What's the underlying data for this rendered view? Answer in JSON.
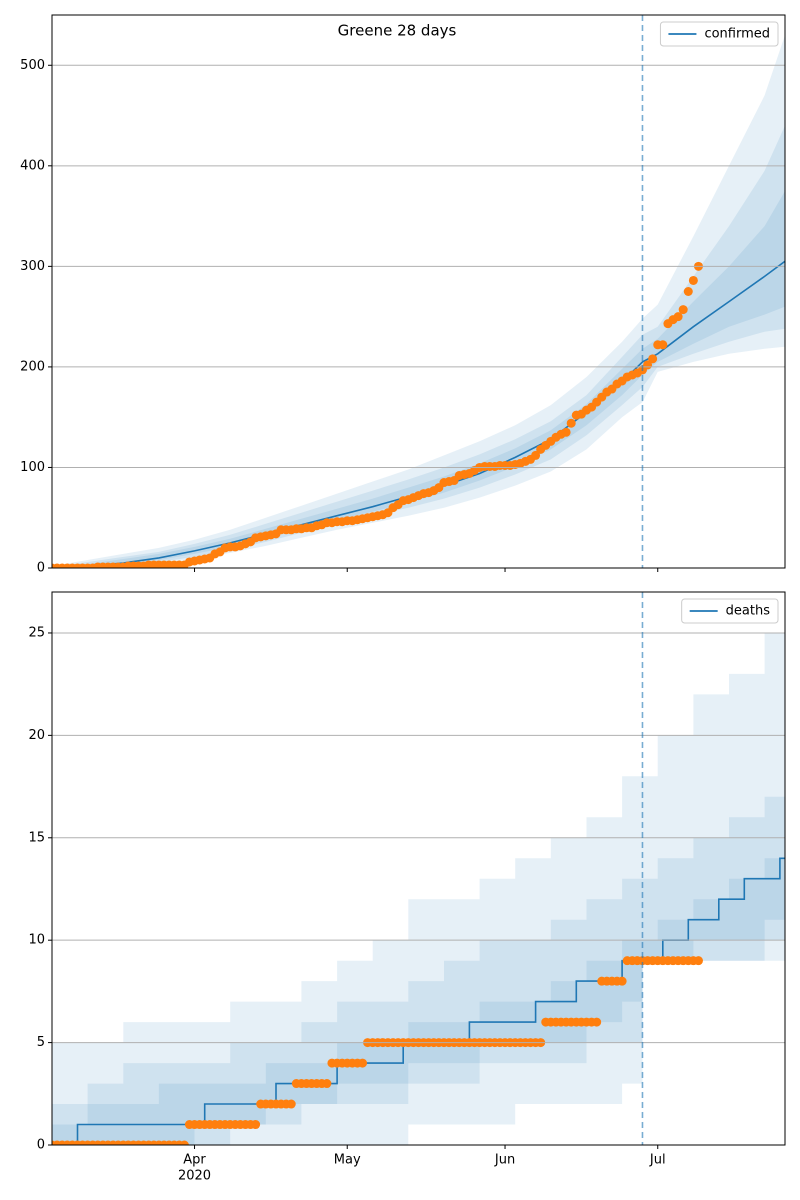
{
  "chart_data": [
    {
      "type": "line",
      "title": "Greene 28 days",
      "xlim": [
        0,
        144
      ],
      "xticks": [
        28,
        58,
        89,
        119
      ],
      "ylim": [
        0,
        550
      ],
      "yticks": [
        0,
        100,
        200,
        300,
        400,
        500
      ],
      "grid": true,
      "legend": "upper right",
      "vline": 116,
      "bands": {
        "color": "#1f77b4",
        "x": [
          0,
          7,
          14,
          21,
          28,
          35,
          42,
          49,
          56,
          63,
          70,
          77,
          84,
          91,
          98,
          105,
          112,
          116,
          119,
          126,
          133,
          140,
          144
        ],
        "lower": [
          [
            0,
            0,
            1,
            4,
            9,
            15,
            22,
            30,
            38,
            45,
            52,
            60,
            70,
            82,
            96,
            118,
            150,
            165,
            195,
            205,
            213,
            218,
            220
          ],
          [
            0,
            0,
            2,
            6,
            11,
            18,
            26,
            35,
            44,
            52,
            60,
            69,
            80,
            93,
            108,
            132,
            162,
            180,
            200,
            213,
            225,
            235,
            238
          ],
          [
            0,
            1,
            3,
            8,
            14,
            21,
            30,
            39,
            48,
            56,
            65,
            75,
            87,
            101,
            118,
            142,
            172,
            192,
            205,
            223,
            240,
            252,
            260
          ]
        ],
        "upper": [
          [
            2,
            8,
            14,
            20,
            28,
            38,
            50,
            62,
            74,
            86,
            98,
            112,
            126,
            142,
            162,
            190,
            225,
            248,
            262,
            330,
            400,
            470,
            530
          ],
          [
            1,
            6,
            11,
            16,
            24,
            33,
            44,
            55,
            66,
            77,
            88,
            100,
            113,
            128,
            146,
            172,
            210,
            232,
            240,
            290,
            340,
            395,
            440
          ],
          [
            1,
            4,
            9,
            14,
            21,
            29,
            39,
            49,
            59,
            69,
            80,
            91,
            104,
            119,
            137,
            163,
            198,
            218,
            228,
            265,
            300,
            340,
            375
          ]
        ]
      },
      "series": [
        {
          "name": "confirmed",
          "color": "#1f77b4",
          "x": [
            0,
            7,
            14,
            21,
            28,
            35,
            42,
            49,
            56,
            63,
            70,
            77,
            84,
            91,
            98,
            105,
            112,
            116,
            119,
            126,
            133,
            140,
            144
          ],
          "values": [
            0,
            2,
            5,
            10,
            17,
            25,
            34,
            43,
            52,
            61,
            71,
            82,
            94,
            110,
            128,
            155,
            185,
            205,
            213,
            240,
            265,
            290,
            305
          ]
        }
      ],
      "observed": {
        "color": "#ff7f0e",
        "x": [
          0,
          1,
          2,
          3,
          4,
          5,
          6,
          7,
          8,
          9,
          10,
          11,
          12,
          13,
          14,
          15,
          16,
          17,
          18,
          19,
          20,
          21,
          22,
          23,
          24,
          25,
          26,
          27,
          28,
          29,
          30,
          31,
          32,
          33,
          34,
          35,
          36,
          37,
          38,
          39,
          40,
          41,
          42,
          43,
          44,
          45,
          46,
          47,
          48,
          49,
          50,
          51,
          52,
          53,
          54,
          55,
          56,
          57,
          58,
          59,
          60,
          61,
          62,
          63,
          64,
          65,
          66,
          67,
          68,
          69,
          70,
          71,
          72,
          73,
          74,
          75,
          76,
          77,
          78,
          79,
          80,
          81,
          82,
          83,
          84,
          85,
          86,
          87,
          88,
          89,
          90,
          91,
          92,
          93,
          94,
          95,
          96,
          97,
          98,
          99,
          100,
          101,
          102,
          103,
          104,
          105,
          106,
          107,
          108,
          109,
          110,
          111,
          112,
          113,
          114,
          115,
          116,
          117,
          118,
          119,
          120,
          121,
          122,
          123,
          124,
          125,
          126,
          127
        ],
        "values": [
          0,
          0,
          0,
          0,
          0,
          0,
          0,
          0,
          0,
          1,
          1,
          1,
          1,
          1,
          1,
          2,
          2,
          2,
          2,
          3,
          3,
          3,
          3,
          3,
          3,
          3,
          3,
          6,
          7,
          8,
          9,
          10,
          14,
          16,
          20,
          21,
          21,
          22,
          24,
          26,
          30,
          31,
          32,
          33,
          34,
          38,
          38,
          38,
          39,
          39,
          40,
          40,
          42,
          43,
          45,
          45,
          46,
          46,
          47,
          47,
          48,
          49,
          50,
          51,
          52,
          53,
          55,
          60,
          63,
          67,
          68,
          70,
          72,
          74,
          75,
          77,
          80,
          85,
          86,
          87,
          92,
          93,
          94,
          97,
          100,
          101,
          101,
          101,
          102,
          102,
          102,
          103,
          104,
          106,
          108,
          112,
          118,
          122,
          126,
          130,
          133,
          135,
          144,
          152,
          153,
          157,
          160,
          165,
          170,
          175,
          178,
          183,
          186,
          190,
          192,
          194,
          197,
          202,
          208,
          222,
          222,
          243,
          247,
          250,
          257,
          275,
          286,
          300
        ]
      }
    },
    {
      "type": "line",
      "drawstyle": "steps-post",
      "xlim": [
        0,
        144
      ],
      "xticks": [
        {
          "value": 28,
          "label": "Apr"
        },
        {
          "value": 58,
          "label": "May"
        },
        {
          "value": 89,
          "label": "Jun"
        },
        {
          "value": 119,
          "label": "Jul"
        }
      ],
      "xtick_year": "2020",
      "ylim": [
        0,
        27
      ],
      "yticks": [
        0,
        5,
        10,
        15,
        20,
        25
      ],
      "grid": true,
      "legend": "upper right",
      "vline": 116,
      "bands": {
        "color": "#1f77b4",
        "x": [
          0,
          7,
          14,
          21,
          28,
          35,
          42,
          49,
          56,
          63,
          70,
          77,
          84,
          91,
          98,
          105,
          112,
          116,
          119,
          126,
          133,
          140,
          144
        ],
        "lower": [
          [
            0,
            0,
            0,
            0,
            0,
            0,
            0,
            0,
            0,
            0,
            1,
            1,
            1,
            2,
            2,
            2,
            3,
            9,
            9,
            9,
            9,
            9,
            9
          ],
          [
            0,
            0,
            0,
            0,
            0,
            1,
            1,
            2,
            2,
            2,
            3,
            3,
            4,
            4,
            4,
            5,
            5,
            9,
            9,
            9,
            9,
            10,
            10
          ],
          [
            0,
            0,
            0,
            0,
            1,
            1,
            2,
            2,
            3,
            3,
            4,
            4,
            5,
            5,
            5,
            6,
            7,
            9,
            9,
            10,
            10,
            11,
            12
          ]
        ],
        "upper": [
          [
            5,
            5,
            6,
            6,
            6,
            7,
            7,
            8,
            9,
            10,
            12,
            12,
            13,
            14,
            15,
            16,
            18,
            18,
            20,
            22,
            23,
            25,
            27
          ],
          [
            2,
            3,
            4,
            4,
            4,
            5,
            5,
            6,
            7,
            7,
            8,
            9,
            10,
            10,
            11,
            12,
            13,
            13,
            14,
            15,
            16,
            17,
            21
          ],
          [
            1,
            2,
            2,
            3,
            3,
            3,
            4,
            4,
            5,
            5,
            6,
            6,
            7,
            7,
            8,
            9,
            10,
            10,
            11,
            12,
            13,
            14,
            15
          ]
        ]
      },
      "series": [
        {
          "name": "deaths",
          "color": "#1f77b4",
          "x": [
            0,
            5,
            30,
            44,
            56,
            69,
            82,
            95,
            103,
            112,
            120,
            125,
            131,
            136,
            143,
            144
          ],
          "values": [
            0,
            1,
            2,
            3,
            4,
            5,
            6,
            7,
            8,
            9,
            10,
            11,
            12,
            13,
            14,
            14
          ]
        }
      ],
      "observed": {
        "color": "#ff7f0e",
        "x": [
          0,
          1,
          2,
          3,
          4,
          5,
          6,
          7,
          8,
          9,
          10,
          11,
          12,
          13,
          14,
          15,
          16,
          17,
          18,
          19,
          20,
          21,
          22,
          23,
          24,
          25,
          26,
          27,
          28,
          29,
          30,
          31,
          32,
          33,
          34,
          35,
          36,
          37,
          38,
          39,
          40,
          41,
          42,
          43,
          44,
          45,
          46,
          47,
          48,
          49,
          50,
          51,
          52,
          53,
          54,
          55,
          56,
          57,
          58,
          59,
          60,
          61,
          62,
          63,
          64,
          65,
          66,
          67,
          68,
          69,
          70,
          71,
          72,
          73,
          74,
          75,
          76,
          77,
          78,
          79,
          80,
          81,
          82,
          83,
          84,
          85,
          86,
          87,
          88,
          89,
          90,
          91,
          92,
          93,
          94,
          95,
          96,
          97,
          98,
          99,
          100,
          101,
          102,
          103,
          104,
          105,
          106,
          107,
          108,
          109,
          110,
          111,
          112,
          113,
          114,
          115,
          116,
          117,
          118,
          119,
          120,
          121,
          122,
          123,
          124,
          125,
          126,
          127
        ],
        "values": [
          0,
          0,
          0,
          0,
          0,
          0,
          0,
          0,
          0,
          0,
          0,
          0,
          0,
          0,
          0,
          0,
          0,
          0,
          0,
          0,
          0,
          0,
          0,
          0,
          0,
          0,
          0,
          1,
          1,
          1,
          1,
          1,
          1,
          1,
          1,
          1,
          1,
          1,
          1,
          1,
          1,
          2,
          2,
          2,
          2,
          2,
          2,
          2,
          3,
          3,
          3,
          3,
          3,
          3,
          3,
          4,
          4,
          4,
          4,
          4,
          4,
          4,
          5,
          5,
          5,
          5,
          5,
          5,
          5,
          5,
          5,
          5,
          5,
          5,
          5,
          5,
          5,
          5,
          5,
          5,
          5,
          5,
          5,
          5,
          5,
          5,
          5,
          5,
          5,
          5,
          5,
          5,
          5,
          5,
          5,
          5,
          5,
          6,
          6,
          6,
          6,
          6,
          6,
          6,
          6,
          6,
          6,
          6,
          8,
          8,
          8,
          8,
          8,
          9,
          9,
          9,
          9,
          9,
          9,
          9,
          9,
          9,
          9,
          9,
          9,
          9,
          9,
          9
        ]
      }
    }
  ]
}
